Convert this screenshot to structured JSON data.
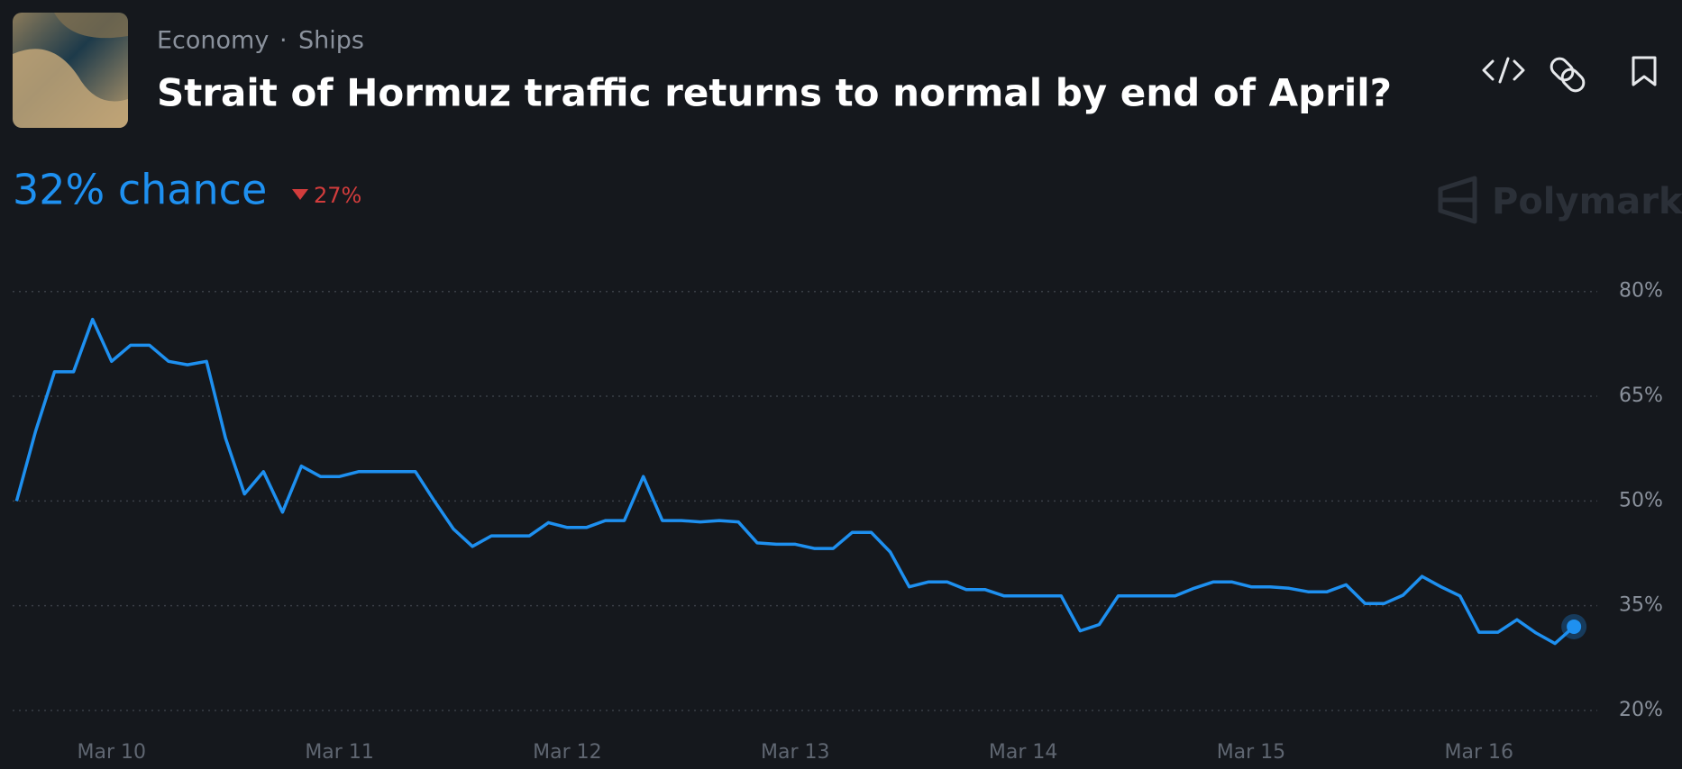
{
  "header": {
    "category": "Economy",
    "separator": "·",
    "subcategory": "Ships",
    "title": "Strait of Hormuz traffic returns to normal by end of April?"
  },
  "headline": {
    "chance_label": "32% chance",
    "change_label": "27%"
  },
  "brand": "Polymarket",
  "chart_data": {
    "type": "line",
    "categories": [
      null,
      null,
      null,
      null,
      null,
      "Mar 10",
      null,
      null,
      null,
      null,
      null,
      null,
      null,
      null,
      null,
      null,
      null,
      "Mar 11",
      null,
      null,
      null,
      null,
      null,
      null,
      null,
      null,
      null,
      null,
      null,
      "Mar 12",
      null,
      null,
      null,
      null,
      null,
      null,
      null,
      null,
      null,
      null,
      null,
      "Mar 13",
      null,
      null,
      null,
      null,
      null,
      null,
      null,
      null,
      null,
      null,
      null,
      "Mar 14",
      null,
      null,
      null,
      null,
      null,
      null,
      null,
      null,
      null,
      null,
      null,
      "Mar 15",
      null,
      null,
      null,
      null,
      null,
      null,
      null,
      null,
      null,
      null,
      null,
      "Mar 16",
      null,
      null,
      null,
      null,
      null
    ],
    "series": [
      {
        "color": "#1e90f0",
        "values": [
          50,
          60,
          68.5,
          68.5,
          76,
          70,
          72.3,
          72.3,
          70,
          69.5,
          70,
          59,
          51,
          54.2,
          48.4,
          55,
          53.5,
          53.5,
          54.2,
          54.2,
          54.2,
          54.2,
          50,
          46,
          43.5,
          45,
          45,
          45,
          46.9,
          46.2,
          46.2,
          47.2,
          47.2,
          53.5,
          47.2,
          47.2,
          47,
          47.2,
          47,
          44,
          43.8,
          43.8,
          43.2,
          43.2,
          45.5,
          45.5,
          42.7,
          37.7,
          38.4,
          38.4,
          37.3,
          37.3,
          36.4,
          36.4,
          36.4,
          36.4,
          31.4,
          32.3,
          36.4,
          36.4,
          36.4,
          36.4,
          37.5,
          38.4,
          38.4,
          37.7,
          37.7,
          37.5,
          37,
          37,
          38,
          35.3,
          35.3,
          36.5,
          39.2,
          37.7,
          36.4,
          31.2,
          31.2,
          33,
          31.1,
          29.6,
          32
        ]
      }
    ],
    "ylim": [
      20,
      80
    ],
    "yticks": [
      {
        "value": 20,
        "label": "20%"
      },
      {
        "value": 35,
        "label": "35%"
      },
      {
        "value": 50,
        "label": "50%"
      },
      {
        "value": 65,
        "label": "65%"
      },
      {
        "value": 80,
        "label": "80%"
      }
    ],
    "grid": true
  }
}
